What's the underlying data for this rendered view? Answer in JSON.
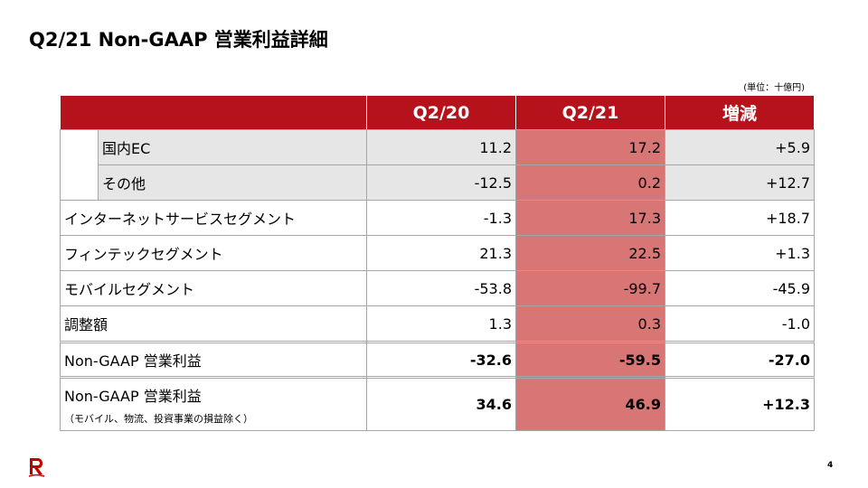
{
  "header": {
    "title": "Q2/21 Non-GAAP 営業利益詳細",
    "unit": "(単位：十億円)"
  },
  "table": {
    "columns": [
      "Q2/20",
      "Q2/21",
      "増減"
    ],
    "sub_rows": [
      {
        "label": "国内EC",
        "values": [
          "11.2",
          "17.2",
          "+5.9"
        ]
      },
      {
        "label": "その他",
        "values": [
          "-12.5",
          "0.2",
          "+12.7"
        ]
      }
    ],
    "rows": [
      {
        "label": "インターネットサービスセグメント",
        "values": [
          "-1.3",
          "17.3",
          "+18.7"
        ]
      },
      {
        "label": "フィンテックセグメント",
        "values": [
          "21.3",
          "22.5",
          "+1.3"
        ]
      },
      {
        "label": "モバイルセグメント",
        "values": [
          "-53.8",
          "-99.7",
          "-45.9"
        ]
      },
      {
        "label": "調整額",
        "values": [
          "1.3",
          "0.3",
          "-1.0"
        ]
      }
    ],
    "total_rows": [
      {
        "label": "Non-GAAP 営業利益",
        "values": [
          "-32.6",
          "-59.5",
          "-27.0"
        ]
      },
      {
        "label": "Non-GAAP 営業利益",
        "note": "（モバイル、物流、投資事業の損益除く）",
        "values": [
          "34.6",
          "46.9",
          "+12.3"
        ]
      }
    ]
  },
  "footer": {
    "page": "4"
  }
}
